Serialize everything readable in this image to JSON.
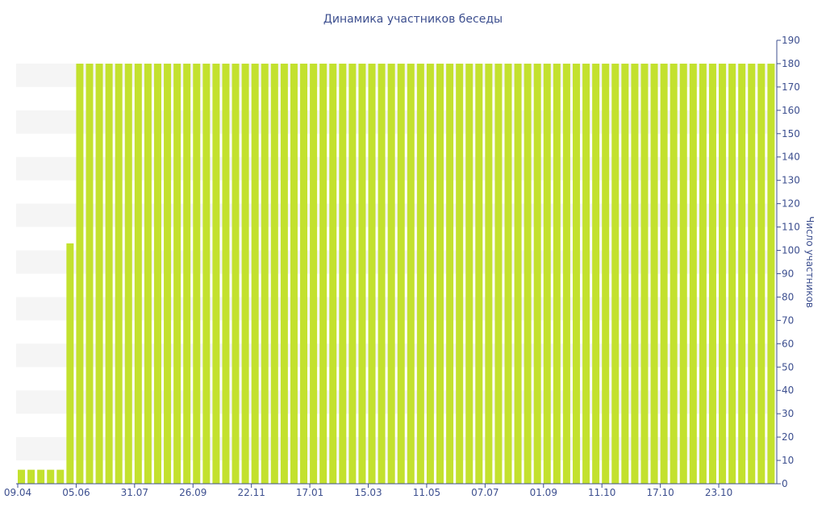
{
  "chart_data": {
    "type": "bar",
    "title": "Динамика участников беседы",
    "xlabel": "",
    "ylabel": "Число участников",
    "ylim": [
      0,
      190
    ],
    "y_ticks": [
      0,
      10,
      20,
      30,
      40,
      50,
      60,
      70,
      80,
      90,
      100,
      110,
      120,
      130,
      140,
      150,
      160,
      170,
      180,
      190
    ],
    "y_axis_position": "right",
    "grid": "alternating horizontal bands",
    "x_tick_labels": [
      {
        "label": "09.04",
        "index": 0
      },
      {
        "label": "05.06",
        "index": 6
      },
      {
        "label": "31.07",
        "index": 12
      },
      {
        "label": "26.09",
        "index": 18
      },
      {
        "label": "22.11",
        "index": 24
      },
      {
        "label": "17.01",
        "index": 30
      },
      {
        "label": "15.03",
        "index": 36
      },
      {
        "label": "11.05",
        "index": 42
      },
      {
        "label": "07.07",
        "index": 48
      },
      {
        "label": "01.09",
        "index": 54
      },
      {
        "label": "11.10",
        "index": 60
      },
      {
        "label": "17.10",
        "index": 66
      },
      {
        "label": "23.10",
        "index": 72
      }
    ],
    "values": [
      6,
      6,
      6,
      6,
      6,
      103,
      180,
      180,
      180,
      180,
      180,
      180,
      180,
      180,
      180,
      180,
      180,
      180,
      180,
      180,
      180,
      180,
      180,
      180,
      180,
      180,
      180,
      180,
      180,
      180,
      180,
      180,
      180,
      180,
      180,
      180,
      180,
      180,
      180,
      180,
      180,
      180,
      180,
      180,
      180,
      180,
      180,
      180,
      180,
      180,
      180,
      180,
      180,
      180,
      180,
      180,
      180,
      180,
      180,
      180,
      180,
      180,
      180,
      180,
      180,
      180,
      180,
      180,
      180,
      180,
      180,
      180,
      180,
      180,
      180,
      180,
      180,
      180
    ],
    "colors": {
      "bar": "#c3e12e",
      "band": "#f5f5f5",
      "text": "#3d4f8f",
      "axis": "#3d4f8f"
    }
  }
}
